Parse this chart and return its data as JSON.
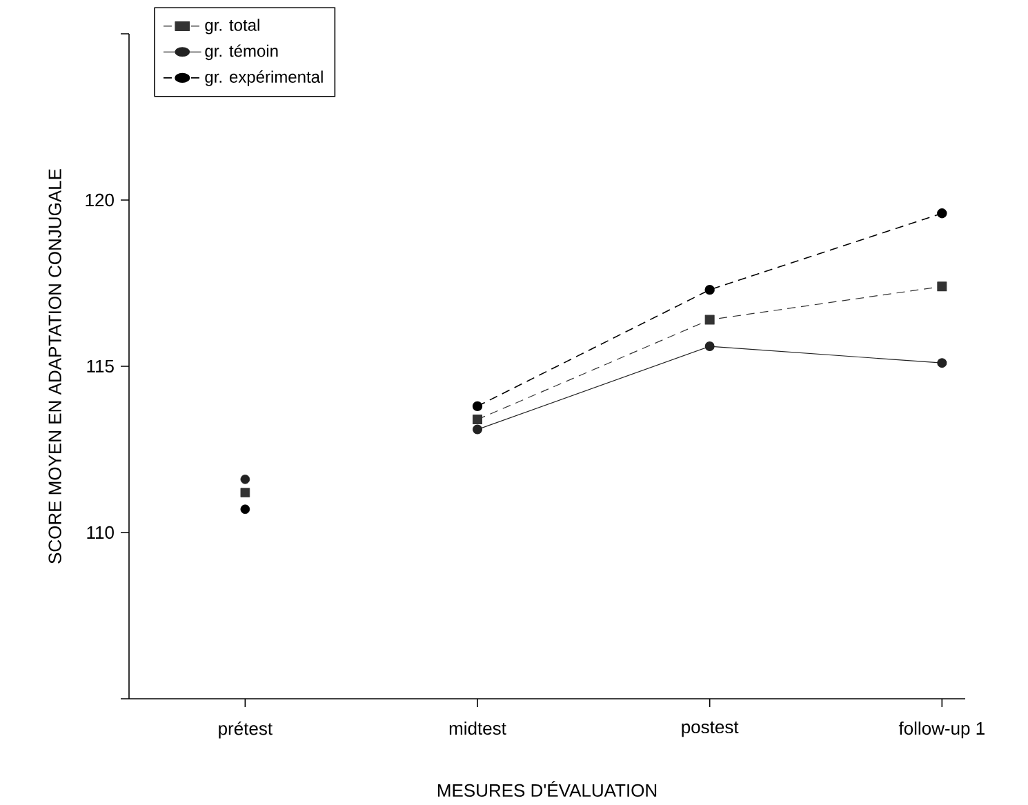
{
  "chart_data": {
    "type": "line",
    "xlabel": "MESURES D'ÉVALUATION",
    "ylabel": "SCORE MOYEN EN ADAPTATION CONJUGALE",
    "categories": [
      "prétest",
      "midtest",
      "postest",
      "follow-up 1"
    ],
    "ylim": [
      105,
      125
    ],
    "yticks": [
      {
        "value": 105,
        "label": null
      },
      110,
      115,
      120,
      {
        "value": 125,
        "label": null
      }
    ],
    "legend": "top left",
    "series": [
      {
        "name": "gr. total",
        "color": "#333333",
        "marker": "square",
        "line_style": "dashed",
        "values": [
          null,
          113.4,
          116.4,
          117.4
        ]
      },
      {
        "name": "gr. témoin",
        "color": "#222222",
        "marker": "circle",
        "line_style": "solid",
        "values": [
          null,
          113.1,
          115.6,
          115.1
        ]
      },
      {
        "name": "gr. expérimental",
        "color": "#000000",
        "marker": "circle",
        "line_style": "dashed",
        "values": [
          null,
          113.8,
          117.3,
          119.6
        ]
      },
      {
        "type": "scatter",
        "color": "#333333",
        "marker": "square",
        "values": [
          111.2,
          null,
          null,
          null
        ]
      },
      {
        "type": "scatter",
        "color": "#222222",
        "marker": "circle",
        "values": [
          111.6,
          null,
          null,
          null
        ]
      },
      {
        "type": "scatter",
        "color": "#000000",
        "marker": "circle",
        "values": [
          110.7,
          null,
          null,
          null
        ]
      }
    ]
  }
}
